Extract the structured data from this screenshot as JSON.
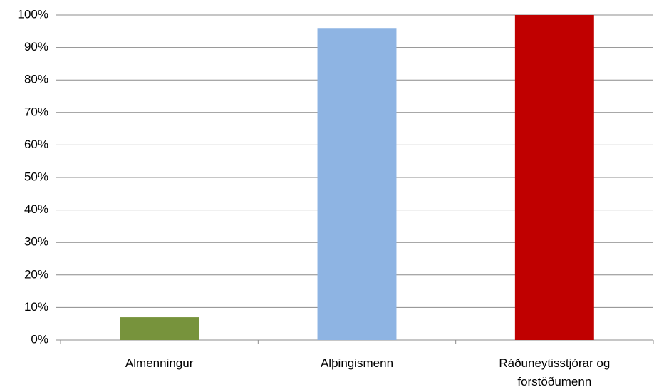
{
  "chart_data": {
    "type": "bar",
    "categories": [
      "Almenningur",
      "Alþingismenn",
      "Ráðuneytisstjórar og forstöðumenn"
    ],
    "values": [
      7,
      96,
      100
    ],
    "colors": [
      "#77933c",
      "#8eb4e3",
      "#c00000"
    ],
    "ylim": [
      0,
      100
    ],
    "yticks": [
      {
        "value": 0,
        "label": "0%"
      },
      {
        "value": 10,
        "label": "10%"
      },
      {
        "value": 20,
        "label": "20%"
      },
      {
        "value": 30,
        "label": "30%"
      },
      {
        "value": 40,
        "label": "40%"
      },
      {
        "value": 50,
        "label": "50%"
      },
      {
        "value": 60,
        "label": "60%"
      },
      {
        "value": 70,
        "label": "70%"
      },
      {
        "value": 80,
        "label": "80%"
      },
      {
        "value": 90,
        "label": "90%"
      },
      {
        "value": 100,
        "label": "100%"
      }
    ],
    "grid": true
  }
}
